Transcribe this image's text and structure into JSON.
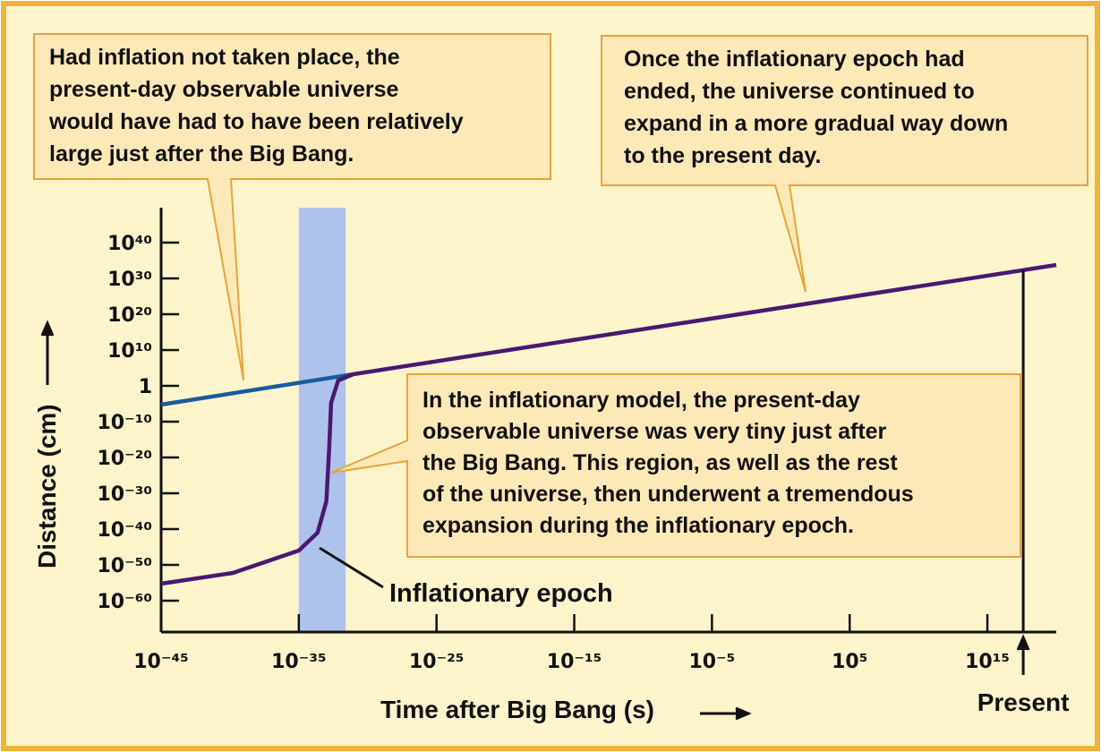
{
  "chart_data": {
    "type": "line",
    "x_label": "Time after Big Bang (s)",
    "y_label": "Distance (cm)",
    "log_x": true,
    "log_y": true,
    "xlim": [
      1e-45,
      1e+20
    ],
    "ylim": [
      1.8e-69,
      5.6e+49
    ],
    "xticks": [
      {
        "value": 1e-45,
        "label": "10⁻⁴⁵"
      },
      {
        "value": 1e-35,
        "label": "10⁻³⁵"
      },
      {
        "value": 1e-25,
        "label": "10⁻²⁵"
      },
      {
        "value": 1e-15,
        "label": "10⁻¹⁵"
      },
      {
        "value": 1e-05,
        "label": "10⁻⁵"
      },
      {
        "value": 100000.0,
        "label": "10⁵"
      },
      {
        "value": 1000000000000000.0,
        "label": "10¹⁵"
      }
    ],
    "yticks": [
      {
        "value": 1e+40,
        "label": "10⁴⁰"
      },
      {
        "value": 1e+30,
        "label": "10³⁰"
      },
      {
        "value": 1e+20,
        "label": "10²⁰"
      },
      {
        "value": 10000000000.0,
        "label": "10¹⁰"
      },
      1,
      {
        "value": 1e-10,
        "label": "10⁻¹⁰"
      },
      {
        "value": 1e-20,
        "label": "10⁻²⁰"
      },
      {
        "value": 1e-30,
        "label": "10⁻³⁰"
      },
      {
        "value": 1e-40,
        "label": "10⁻⁴⁰"
      },
      {
        "value": 1e-50,
        "label": "10⁻⁵⁰"
      },
      {
        "value": 1e-60,
        "label": "10⁻⁶⁰"
      }
    ],
    "series": [
      {
        "color": "#1a5a9e",
        "x": [
          1e-45,
          9e-32
        ],
        "values": [
          5.6e-06,
          1800
        ]
      },
      {
        "color": "#4b1770",
        "x": [
          1e-45,
          1.6e-40,
          1e-35,
          2.3e-34,
          1e-33,
          1.6e-33,
          2.2e-33,
          7.2e-33,
          9e-32,
          1e+20
        ],
        "values": [
          5.6e-56,
          5.6e-53,
          1e-46,
          1e-41,
          5.6e-33,
          5.6e-18,
          1.8e-05,
          32,
          1800,
          5.6e+33
        ]
      }
    ],
    "epoch_band": {
      "x": [
        1e-35,
        2.5e-32
      ],
      "color": "#aec3ec",
      "label": "Inflationary epoch"
    },
    "present": {
      "x": 4e+17,
      "label": "Present"
    },
    "annotations": [
      [
        "Had inflation not taken place, the",
        "present-day observable universe",
        "would have had to have been relatively",
        "large just after the Big Bang."
      ],
      [
        "Once the inflationary epoch had",
        "ended, the universe continued to",
        "expand in a more gradual way down",
        "to the present day."
      ],
      [
        "In the inflationary model, the present-day",
        "observable universe was very tiny just after",
        "the Big Bang. This region, as well as the rest",
        "of the universe, then underwent a tremendous",
        "expansion during the inflationary epoch."
      ]
    ]
  }
}
